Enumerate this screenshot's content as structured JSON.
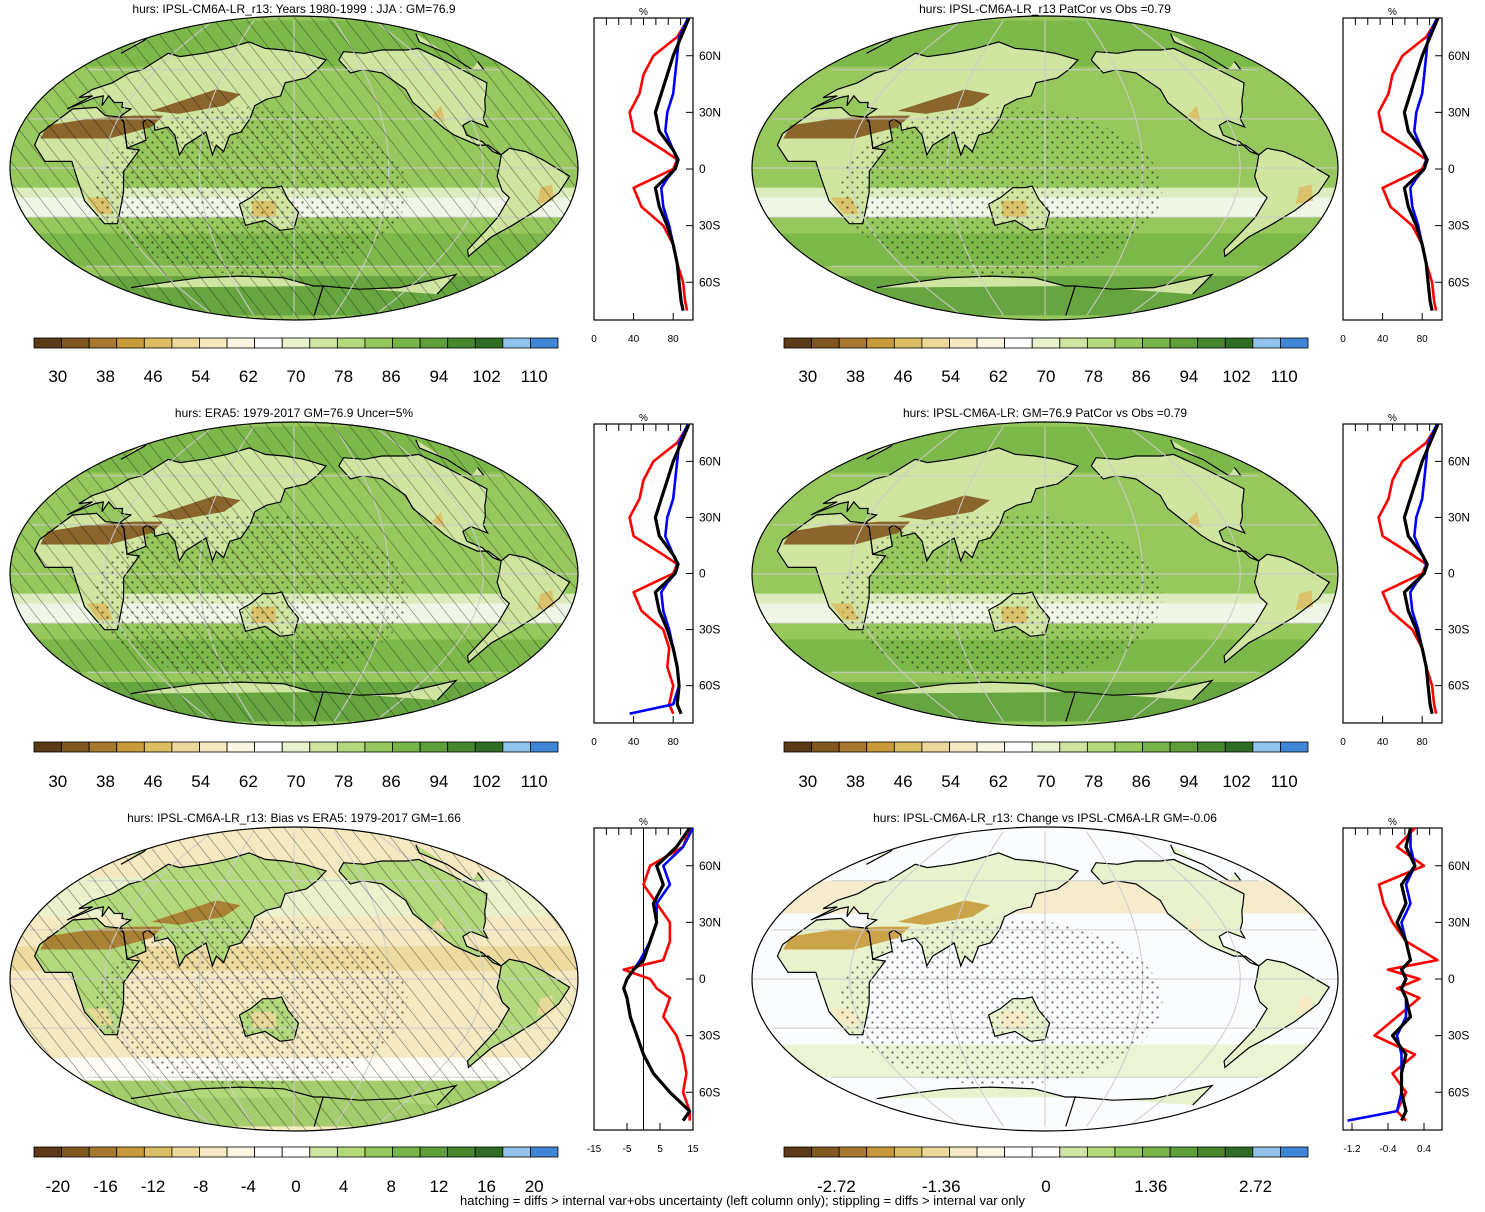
{
  "footer": "hatching = diffs > internal var+obs uncertainty (left column only); stippling = diffs > internal var only",
  "colors": {
    "model": "#000000",
    "obs": "#ff0000",
    "other": "#0000ff",
    "land_outline": "#000000",
    "graticule": "#cccccc"
  },
  "chart_data": [
    {
      "id": "p1",
      "type": "heatmap",
      "title": "hurs: IPSL-CM6A-LR_r13: Years 1980-1999 : JJA : GM=76.9",
      "map_style": "abs",
      "hatching": true,
      "stippling": true,
      "colorbar_labels": [
        "30",
        "38",
        "46",
        "54",
        "62",
        "70",
        "78",
        "86",
        "94",
        "102",
        "110"
      ],
      "colorbar_colors": [
        "#5a3a17",
        "#82561f",
        "#a8782f",
        "#c89a3a",
        "#dcbe64",
        "#ecd89a",
        "#f5e9c2",
        "#fbf6e4",
        "#ffffff",
        "#e8f2cd",
        "#cfe5a0",
        "#b4d97c",
        "#97c85e",
        "#78b548",
        "#5e9f3b",
        "#46872f",
        "#2f6d25",
        "#8fc3ec",
        "#3f87d6"
      ],
      "profile": {
        "units": "%",
        "ytick_labels": [
          "60N",
          "30N",
          "0",
          "30S",
          "60S"
        ],
        "ytick_values": [
          60,
          30,
          0,
          -30,
          -60
        ],
        "xtick_labels": [
          "0",
          "40",
          "80"
        ],
        "xtick_values": [
          0,
          40,
          80
        ],
        "xlim": [
          0,
          100
        ],
        "ylim": [
          -80,
          80
        ],
        "zero_line": false,
        "lat": [
          80,
          70,
          60,
          50,
          40,
          30,
          20,
          10,
          5,
          0,
          -5,
          -10,
          -20,
          -30,
          -40,
          -50,
          -60,
          -70,
          -75
        ],
        "series": [
          {
            "role": "model",
            "values": [
              96,
              88,
              80,
              74,
              68,
              62,
              66,
              80,
              85,
              82,
              72,
              62,
              66,
              74,
              80,
              84,
              86,
              88,
              90
            ]
          },
          {
            "role": "obs",
            "values": [
              96,
              84,
              60,
              50,
              46,
              36,
              40,
              70,
              84,
              80,
              60,
              40,
              48,
              70,
              80,
              84,
              90,
              92,
              94
            ]
          },
          {
            "role": "other",
            "values": [
              95,
              86,
              84,
              82,
              80,
              74,
              72,
              80,
              84,
              82,
              74,
              68,
              70,
              76,
              80,
              84,
              86,
              88,
              90
            ]
          }
        ]
      }
    },
    {
      "id": "p2",
      "type": "heatmap",
      "title": "hurs: IPSL-CM6A-LR_r13 PatCor vs Obs =0.79",
      "map_style": "abs",
      "hatching": false,
      "stippling": true,
      "colorbar_labels": [
        "30",
        "38",
        "46",
        "54",
        "62",
        "70",
        "78",
        "86",
        "94",
        "102",
        "110"
      ],
      "colorbar_colors": [
        "#5a3a17",
        "#82561f",
        "#a8782f",
        "#c89a3a",
        "#dcbe64",
        "#ecd89a",
        "#f5e9c2",
        "#fbf6e4",
        "#ffffff",
        "#e8f2cd",
        "#cfe5a0",
        "#b4d97c",
        "#97c85e",
        "#78b548",
        "#5e9f3b",
        "#46872f",
        "#2f6d25",
        "#8fc3ec",
        "#3f87d6"
      ],
      "profile": {
        "units": "%",
        "ytick_labels": [
          "60N",
          "30N",
          "0",
          "30S",
          "60S"
        ],
        "ytick_values": [
          60,
          30,
          0,
          -30,
          -60
        ],
        "xtick_labels": [
          "0",
          "40",
          "80"
        ],
        "xtick_values": [
          0,
          40,
          80
        ],
        "xlim": [
          0,
          100
        ],
        "ylim": [
          -80,
          80
        ],
        "zero_line": false,
        "lat": [
          80,
          70,
          60,
          50,
          40,
          30,
          20,
          10,
          5,
          0,
          -5,
          -10,
          -20,
          -30,
          -40,
          -50,
          -60,
          -70,
          -75
        ],
        "series": [
          {
            "role": "model",
            "values": [
              96,
              88,
              80,
              74,
              68,
              62,
              66,
              80,
              85,
              82,
              72,
              62,
              66,
              74,
              80,
              84,
              86,
              88,
              90
            ]
          },
          {
            "role": "obs",
            "values": [
              96,
              84,
              60,
              50,
              46,
              36,
              40,
              70,
              84,
              80,
              60,
              40,
              48,
              70,
              80,
              84,
              90,
              92,
              94
            ]
          },
          {
            "role": "other",
            "values": [
              95,
              86,
              84,
              82,
              80,
              74,
              72,
              80,
              84,
              82,
              74,
              68,
              70,
              76,
              80,
              84,
              86,
              88,
              90
            ]
          }
        ]
      }
    },
    {
      "id": "p3",
      "type": "heatmap",
      "title": "hurs: ERA5: 1979-2017 GM=76.9 Uncer=5%",
      "map_style": "abs",
      "hatching": true,
      "stippling": true,
      "colorbar_labels": [
        "30",
        "38",
        "46",
        "54",
        "62",
        "70",
        "78",
        "86",
        "94",
        "102",
        "110"
      ],
      "colorbar_colors": [
        "#5a3a17",
        "#82561f",
        "#a8782f",
        "#c89a3a",
        "#dcbe64",
        "#ecd89a",
        "#f5e9c2",
        "#fbf6e4",
        "#ffffff",
        "#e8f2cd",
        "#cfe5a0",
        "#b4d97c",
        "#97c85e",
        "#78b548",
        "#5e9f3b",
        "#46872f",
        "#2f6d25",
        "#8fc3ec",
        "#3f87d6"
      ],
      "profile": {
        "units": "%",
        "ytick_labels": [
          "60N",
          "30N",
          "0",
          "30S",
          "60S"
        ],
        "ytick_values": [
          60,
          30,
          0,
          -30,
          -60
        ],
        "xtick_labels": [
          "0",
          "40",
          "80"
        ],
        "xtick_values": [
          0,
          40,
          80
        ],
        "xlim": [
          0,
          100
        ],
        "ylim": [
          -80,
          80
        ],
        "zero_line": false,
        "lat": [
          80,
          70,
          60,
          50,
          40,
          30,
          20,
          10,
          5,
          0,
          -5,
          -10,
          -20,
          -30,
          -40,
          -50,
          -60,
          -70,
          -75
        ],
        "series": [
          {
            "role": "model",
            "values": [
              96,
              88,
              80,
              74,
              68,
              62,
              66,
              80,
              85,
              82,
              72,
              62,
              66,
              74,
              80,
              84,
              86,
              84,
              88
            ]
          },
          {
            "role": "obs",
            "values": [
              96,
              84,
              60,
              50,
              46,
              36,
              40,
              70,
              84,
              80,
              60,
              40,
              48,
              70,
              76,
              74,
              80,
              76,
              80
            ]
          },
          {
            "role": "other",
            "values": [
              95,
              86,
              84,
              82,
              80,
              74,
              72,
              80,
              84,
              82,
              74,
              68,
              70,
              76,
              80,
              84,
              86,
              80,
              36
            ]
          }
        ]
      }
    },
    {
      "id": "p4",
      "type": "heatmap",
      "title": "hurs: IPSL-CM6A-LR: GM=76.9 PatCor vs Obs =0.79",
      "map_style": "abs",
      "hatching": false,
      "stippling": true,
      "colorbar_labels": [
        "30",
        "38",
        "46",
        "54",
        "62",
        "70",
        "78",
        "86",
        "94",
        "102",
        "110"
      ],
      "colorbar_colors": [
        "#5a3a17",
        "#82561f",
        "#a8782f",
        "#c89a3a",
        "#dcbe64",
        "#ecd89a",
        "#f5e9c2",
        "#fbf6e4",
        "#ffffff",
        "#e8f2cd",
        "#cfe5a0",
        "#b4d97c",
        "#97c85e",
        "#78b548",
        "#5e9f3b",
        "#46872f",
        "#2f6d25",
        "#8fc3ec",
        "#3f87d6"
      ],
      "profile": {
        "units": "%",
        "ytick_labels": [
          "60N",
          "30N",
          "0",
          "30S",
          "60S"
        ],
        "ytick_values": [
          60,
          30,
          0,
          -30,
          -60
        ],
        "xtick_labels": [
          "0",
          "40",
          "80"
        ],
        "xtick_values": [
          0,
          40,
          80
        ],
        "xlim": [
          0,
          100
        ],
        "ylim": [
          -80,
          80
        ],
        "zero_line": false,
        "lat": [
          80,
          70,
          60,
          50,
          40,
          30,
          20,
          10,
          5,
          0,
          -5,
          -10,
          -20,
          -30,
          -40,
          -50,
          -60,
          -70,
          -75
        ],
        "series": [
          {
            "role": "model",
            "values": [
              96,
              88,
              80,
              74,
              68,
              62,
              66,
              80,
              85,
              82,
              72,
              62,
              66,
              74,
              80,
              84,
              86,
              88,
              90
            ]
          },
          {
            "role": "obs",
            "values": [
              96,
              84,
              60,
              50,
              46,
              36,
              40,
              70,
              84,
              80,
              60,
              40,
              48,
              70,
              80,
              84,
              90,
              92,
              94
            ]
          },
          {
            "role": "other",
            "values": [
              95,
              86,
              84,
              82,
              80,
              74,
              72,
              80,
              84,
              82,
              74,
              68,
              70,
              76,
              80,
              84,
              86,
              88,
              90
            ]
          }
        ]
      }
    },
    {
      "id": "p5",
      "type": "heatmap",
      "title": "hurs: IPSL-CM6A-LR_r13: Bias vs ERA5: 1979-2017 GM=1.66",
      "map_style": "bias",
      "hatching": true,
      "stippling": true,
      "colorbar_labels": [
        "-20",
        "-16",
        "-12",
        "-8",
        "-4",
        "0",
        "4",
        "8",
        "12",
        "16",
        "20"
      ],
      "colorbar_colors": [
        "#5a3a17",
        "#82561f",
        "#a8782f",
        "#c89a3a",
        "#dcbe64",
        "#ecd89a",
        "#f5e9c2",
        "#fbf6e4",
        "#ffffff",
        "#ffffff",
        "#cfe5a0",
        "#b4d97c",
        "#97c85e",
        "#78b548",
        "#5e9f3b",
        "#46872f",
        "#2f6d25",
        "#8fc3ec",
        "#3f87d6"
      ],
      "profile": {
        "units": "%",
        "ytick_labels": [
          "60N",
          "30N",
          "0",
          "30S",
          "60S"
        ],
        "ytick_values": [
          60,
          30,
          0,
          -30,
          -60
        ],
        "xtick_labels": [
          "-15",
          "-5",
          "5",
          "15"
        ],
        "xtick_values": [
          -15,
          -5,
          5,
          15
        ],
        "xlim": [
          -15,
          15
        ],
        "ylim": [
          -80,
          80
        ],
        "zero_line": true,
        "lat": [
          80,
          70,
          60,
          50,
          40,
          30,
          20,
          10,
          5,
          0,
          -5,
          -10,
          -20,
          -30,
          -40,
          -50,
          -60,
          -70,
          -75
        ],
        "series": [
          {
            "role": "model",
            "values": [
              14,
              10,
              4,
              6,
              3,
              4,
              2,
              0,
              -3,
              -5,
              -6,
              -5,
              -4,
              -2,
              0,
              3,
              8,
              14,
              12
            ]
          },
          {
            "role": "obs",
            "values": [
              14,
              12,
              2,
              0,
              4,
              8,
              8,
              6,
              -6,
              2,
              4,
              8,
              6,
              10,
              12,
              13,
              12,
              14,
              14
            ]
          },
          {
            "role": "other",
            "values": [
              15,
              12,
              6,
              8,
              4,
              4,
              2,
              -1,
              -3,
              -5,
              -6,
              -5,
              -4,
              -2,
              0,
              3,
              8,
              14,
              12
            ]
          }
        ]
      }
    },
    {
      "id": "p6",
      "type": "heatmap",
      "title": "hurs: IPSL-CM6A-LR_r13: Change vs IPSL-CM6A-LR GM=-0.06",
      "map_style": "change",
      "hatching": false,
      "stippling": true,
      "colorbar_labels": [
        "-2.72",
        "-1.36",
        "0",
        "1.36",
        "2.72"
      ],
      "colorbar_colors": [
        "#5a3a17",
        "#82561f",
        "#a8782f",
        "#c89a3a",
        "#dcbe64",
        "#ecd89a",
        "#f5e9c2",
        "#fbf6e4",
        "#ffffff",
        "#ffffff",
        "#cfe5a0",
        "#b4d97c",
        "#97c85e",
        "#78b548",
        "#5e9f3b",
        "#46872f",
        "#2f6d25",
        "#8fc3ec",
        "#3f87d6"
      ],
      "profile": {
        "units": "%",
        "ytick_labels": [
          "60N",
          "30N",
          "0",
          "30S",
          "60S"
        ],
        "ytick_values": [
          60,
          30,
          0,
          -30,
          -60
        ],
        "xtick_labels": [
          "-1.2",
          "-0.4",
          "0.4"
        ],
        "xtick_values": [
          -1.2,
          -0.4,
          0.4
        ],
        "xlim": [
          -1.4,
          0.8
        ],
        "ylim": [
          -80,
          80
        ],
        "zero_line": false,
        "lat": [
          80,
          70,
          60,
          50,
          40,
          30,
          20,
          10,
          5,
          0,
          -5,
          -10,
          -20,
          -30,
          -40,
          -50,
          -60,
          -70,
          -75
        ],
        "series": [
          {
            "role": "model",
            "values": [
              0.1,
              0.0,
              0.2,
              -0.1,
              0.0,
              -0.2,
              0.0,
              0.1,
              -0.1,
              0.0,
              -0.1,
              0.0,
              0.1,
              -0.3,
              0.0,
              -0.1,
              -0.1,
              0.0,
              -0.1
            ]
          },
          {
            "role": "obs",
            "values": [
              0.2,
              -0.2,
              0.4,
              -0.6,
              -0.5,
              -0.3,
              0.0,
              0.7,
              -0.4,
              0.3,
              -0.2,
              0.3,
              -0.2,
              -0.7,
              0.2,
              -0.3,
              0.0,
              -0.2,
              0.0
            ]
          },
          {
            "role": "other",
            "values": [
              0.1,
              0.1,
              0.2,
              0.0,
              0.1,
              -0.1,
              0.0,
              0.1,
              -0.1,
              0.0,
              -0.1,
              0.0,
              0.0,
              -0.2,
              -0.1,
              -0.1,
              -0.1,
              -0.2,
              -1.3
            ]
          }
        ]
      }
    }
  ]
}
